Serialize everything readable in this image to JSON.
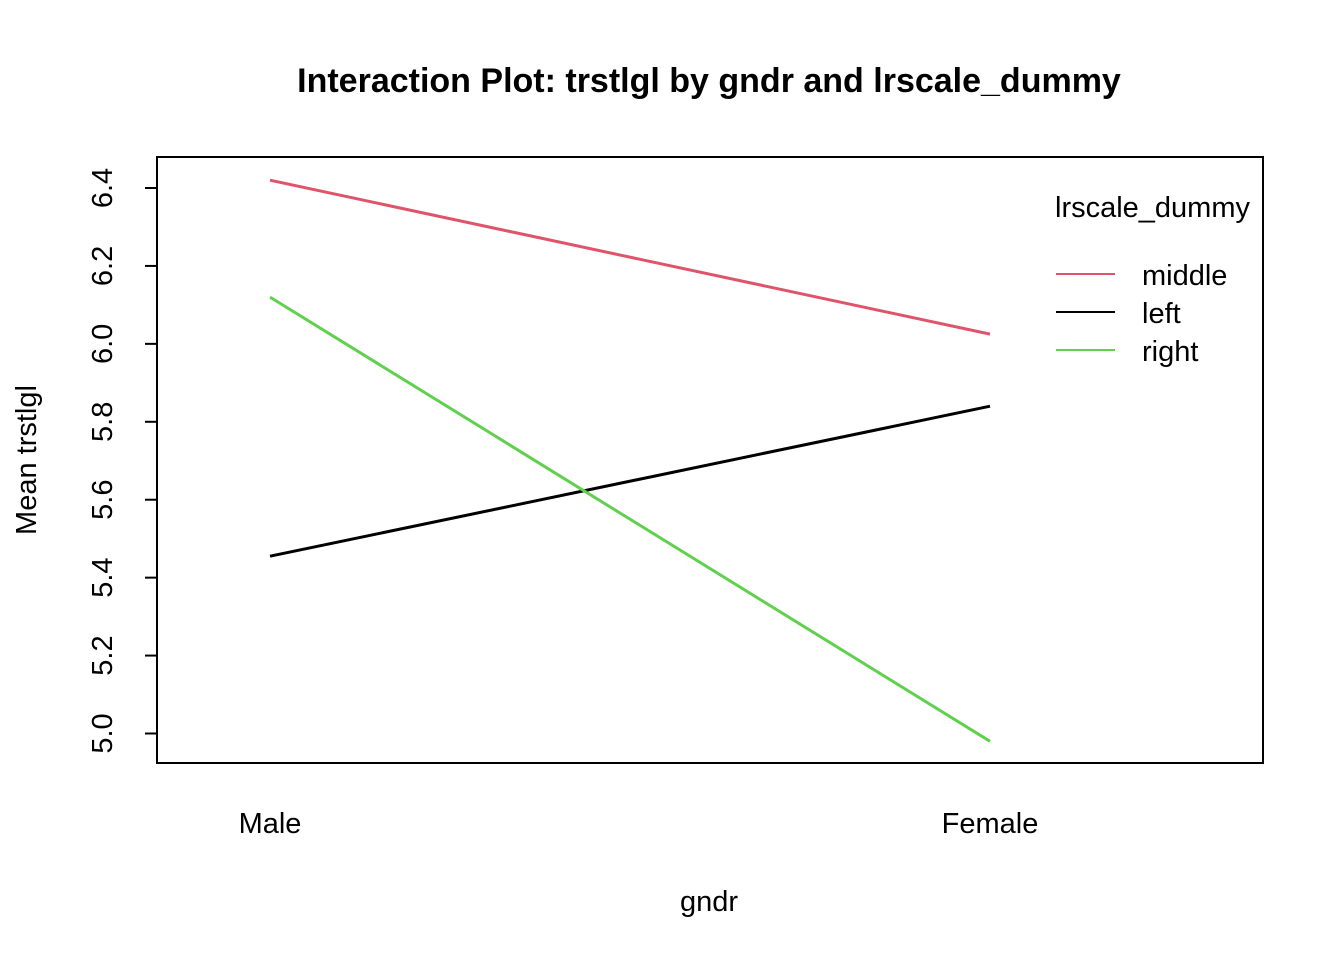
{
  "chart_data": {
    "type": "line",
    "title": "Interaction Plot: trstlgl by gndr and lrscale_dummy",
    "xlabel": "gndr",
    "ylabel": "Mean trstlgl",
    "categories": [
      "Male",
      "Female"
    ],
    "ylim": [
      4.92,
      6.48
    ],
    "yticks": [
      5.0,
      5.2,
      5.4,
      5.6,
      5.8,
      6.0,
      6.2,
      6.4
    ],
    "legend": {
      "title": "lrscale_dummy",
      "position": "top-right"
    },
    "series": [
      {
        "name": "middle",
        "values": [
          6.42,
          6.025
        ],
        "color": "#DF536B"
      },
      {
        "name": "left",
        "values": [
          5.455,
          5.84
        ],
        "color": "#000000"
      },
      {
        "name": "right",
        "values": [
          6.12,
          4.98
        ],
        "color": "#61D04F"
      }
    ]
  }
}
